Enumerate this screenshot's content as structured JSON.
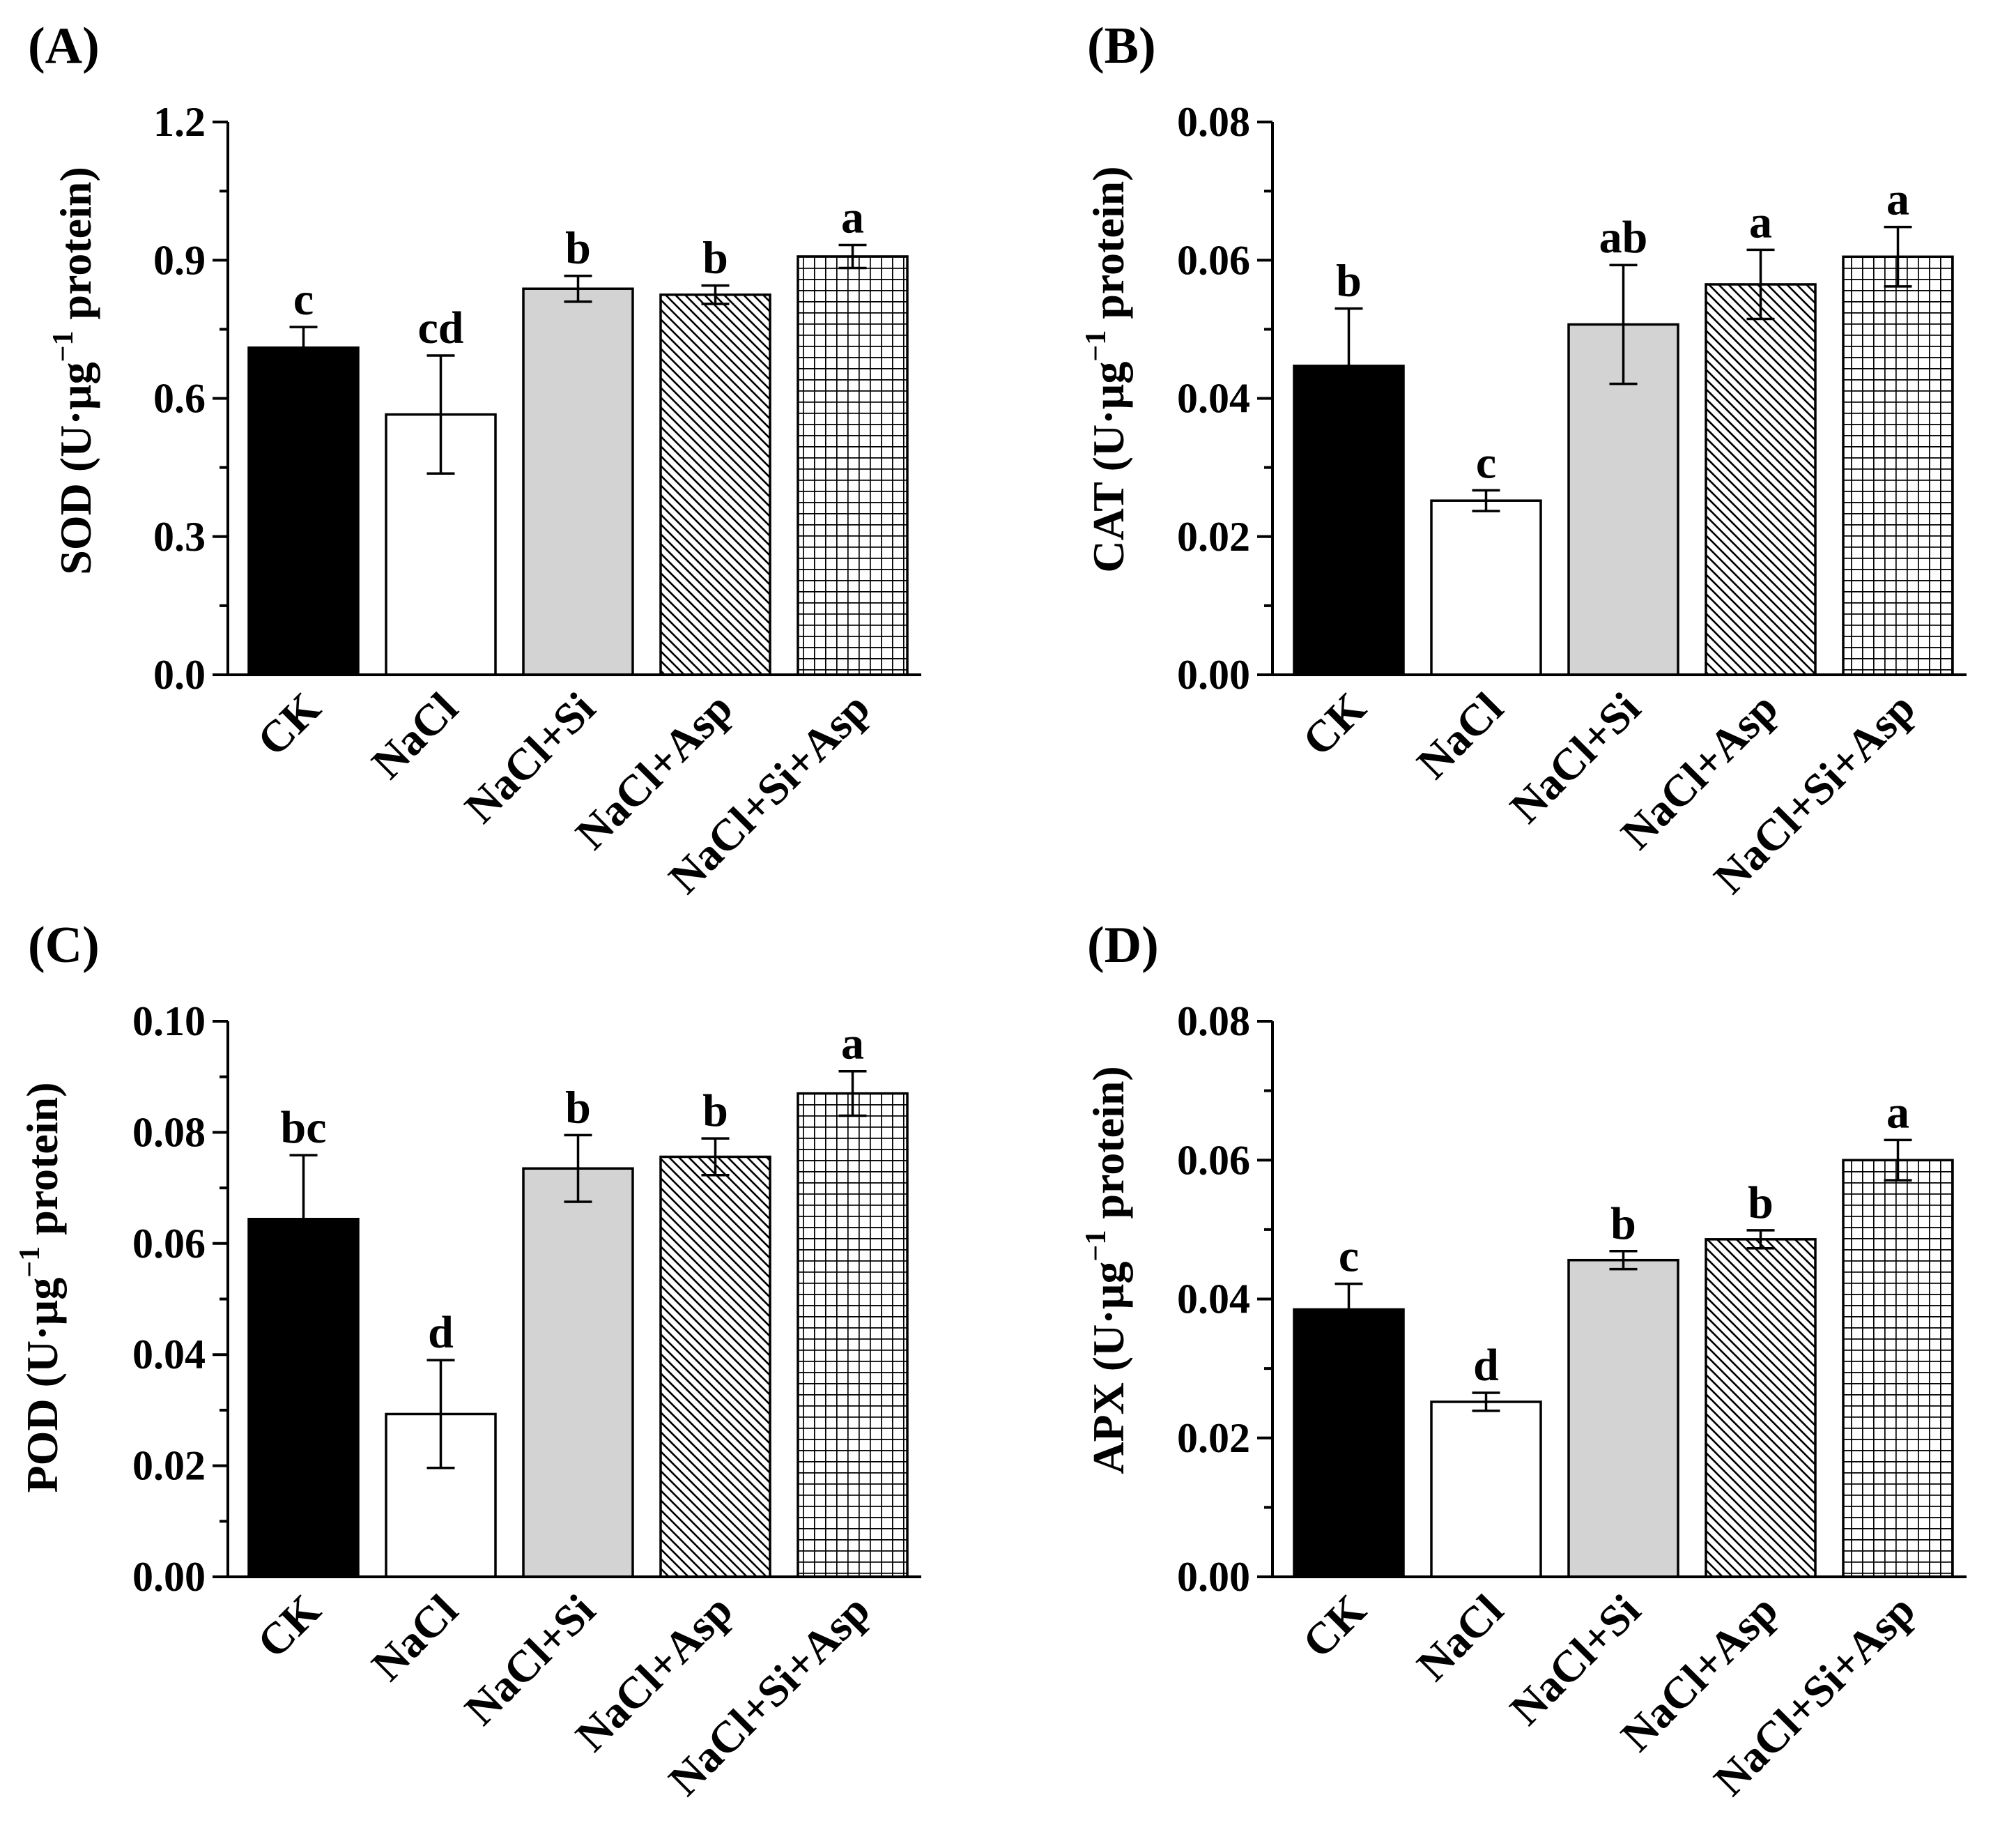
{
  "chart_data": [
    {
      "panel": "(A)",
      "type": "bar",
      "ylabel": "SOD (U·µg⁻¹ protein)",
      "ylabel_prefix": "SOD (U·µg",
      "ylabel_sup": "−1",
      "ylabel_suffix": " protein)",
      "ylim": [
        0,
        1.2
      ],
      "yticks": [
        "0.0",
        "0.3",
        "0.6",
        "0.9",
        "1.2"
      ],
      "categories": [
        "CK",
        "NaCl",
        "NaCl+Si",
        "NaCl+Asp",
        "NaCl+Si+Asp"
      ],
      "values": [
        0.71,
        0.565,
        0.838,
        0.825,
        0.908
      ],
      "errors": [
        0.045,
        0.128,
        0.028,
        0.02,
        0.025
      ],
      "letters": [
        "c",
        "cd",
        "b",
        "b",
        "a"
      ],
      "fills": [
        "black",
        "white",
        "gray",
        "diagonal",
        "grid"
      ]
    },
    {
      "panel": "(B)",
      "type": "bar",
      "ylabel": "CAT (U·µg⁻¹ protein)",
      "ylabel_prefix": "CAT (U·µg",
      "ylabel_sup": "−1",
      "ylabel_suffix": " protein)",
      "ylim": [
        0,
        0.08
      ],
      "yticks": [
        "0.00",
        "0.02",
        "0.04",
        "0.06",
        "0.08"
      ],
      "categories": [
        "CK",
        "NaCl",
        "NaCl+Si",
        "NaCl+Asp",
        "NaCl+Si+Asp"
      ],
      "values": [
        0.0447,
        0.0252,
        0.0507,
        0.0565,
        0.0605
      ],
      "errors": [
        0.0083,
        0.0015,
        0.0086,
        0.005,
        0.0043
      ],
      "letters": [
        "b",
        "c",
        "ab",
        "a",
        "a"
      ],
      "fills": [
        "black",
        "white",
        "gray",
        "diagonal",
        "grid"
      ]
    },
    {
      "panel": "(C)",
      "type": "bar",
      "ylabel": "POD (U·µg⁻¹ protein)",
      "ylabel_prefix": "POD (U·µg",
      "ylabel_sup": "−1",
      "ylabel_suffix": " protein)",
      "ylim": [
        0,
        0.1
      ],
      "yticks": [
        "0.00",
        "0.02",
        "0.04",
        "0.06",
        "0.08",
        "0.10"
      ],
      "categories": [
        "CK",
        "NaCl",
        "NaCl+Si",
        "NaCl+Asp",
        "NaCl+Si+Asp"
      ],
      "values": [
        0.0644,
        0.0293,
        0.0735,
        0.0756,
        0.087
      ],
      "errors": [
        0.0115,
        0.0097,
        0.006,
        0.0033,
        0.004
      ],
      "letters": [
        "bc",
        "d",
        "b",
        "b",
        "a"
      ],
      "fills": [
        "black",
        "white",
        "gray",
        "diagonal",
        "grid"
      ]
    },
    {
      "panel": "(D)",
      "type": "bar",
      "ylabel": "APX (U·µg⁻¹ protein)",
      "ylabel_prefix": "APX (U·µg",
      "ylabel_sup": "−1",
      "ylabel_suffix": " protein)",
      "ylim": [
        0,
        0.08
      ],
      "yticks": [
        "0.00",
        "0.02",
        "0.04",
        "0.06",
        "0.08"
      ],
      "categories": [
        "CK",
        "NaCl",
        "NaCl+Si",
        "NaCl+Asp",
        "NaCl+Si+Asp"
      ],
      "values": [
        0.0385,
        0.0252,
        0.0456,
        0.0486,
        0.06
      ],
      "errors": [
        0.0037,
        0.0013,
        0.0013,
        0.0013,
        0.0029
      ],
      "letters": [
        "c",
        "d",
        "b",
        "b",
        "a"
      ],
      "fills": [
        "black",
        "white",
        "gray",
        "diagonal",
        "grid"
      ]
    }
  ]
}
